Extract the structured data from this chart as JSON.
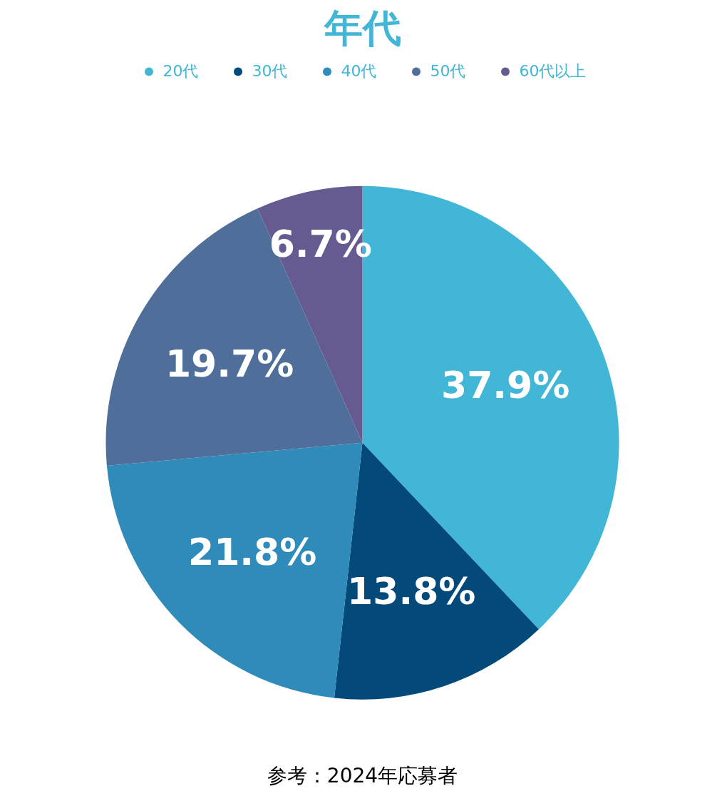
{
  "chart_data": {
    "type": "pie",
    "title": "年代",
    "categories": [
      "20代",
      "30代",
      "40代",
      "50代",
      "60代以上"
    ],
    "values": [
      37.9,
      13.8,
      21.8,
      19.7,
      6.7
    ],
    "value_labels": [
      "37.9%",
      "13.8%",
      "21.8%",
      "19.7%",
      "6.7%"
    ],
    "colors": [
      "#42b6d6",
      "#03497a",
      "#2e8bba",
      "#4f6e9a",
      "#655b91"
    ],
    "legend": "top",
    "annotations": [
      "参考：2024年応募者"
    ]
  }
}
